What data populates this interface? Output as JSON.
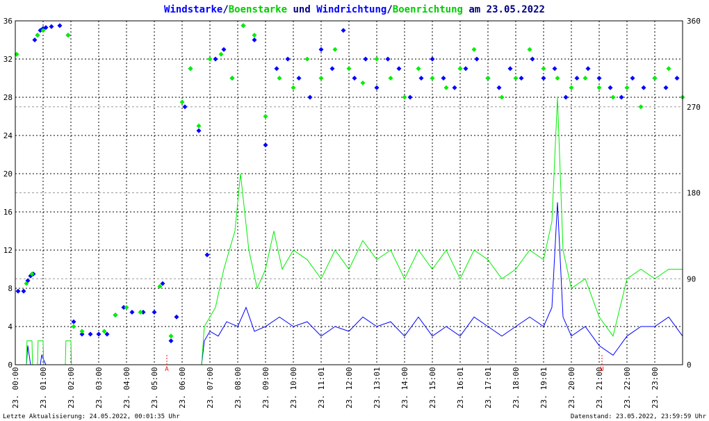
{
  "title": {
    "parts": [
      {
        "text": "Windstarke",
        "color": "#0000ff"
      },
      {
        "text": "/",
        "color": "#000080"
      },
      {
        "text": "Boenstarke",
        "color": "#00cc00"
      },
      {
        "text": " und ",
        "color": "#000080"
      },
      {
        "text": "Windrichtung",
        "color": "#0000ff"
      },
      {
        "text": "/",
        "color": "#000080"
      },
      {
        "text": "Boenrichtung",
        "color": "#00cc00"
      },
      {
        "text": " am 23.05.2022",
        "color": "#000080"
      }
    ]
  },
  "footer": {
    "left": "Letzte Aktualisierung: 24.05.2022, 00:01:35 Uhr",
    "right": "Datenstand: 23.05.2022, 23:59:59 Uhr"
  },
  "markers": [
    {
      "label": "A",
      "hour": 5.45,
      "color": "#ff0000"
    },
    {
      "label": "U",
      "hour": 21.1,
      "color": "#ff0000"
    }
  ],
  "colors": {
    "wind": "#0000ff",
    "gust": "#00ee00",
    "grid": "#000000",
    "axis": "#000000"
  },
  "chart_data": {
    "type": "line",
    "x_range_hours": [
      0,
      24
    ],
    "x_tick_labels": [
      "23. 00:00",
      "23. 01:00",
      "23. 02:00",
      "23. 03:00",
      "23. 04:00",
      "23. 05:00",
      "23. 06:00",
      "23. 07:00",
      "23. 08:00",
      "23. 09:00",
      "23. 10:00",
      "23. 11:01",
      "23. 12:00",
      "23. 13:01",
      "23. 14:00",
      "23. 15:00",
      "23. 16:01",
      "23. 17:01",
      "23. 18:00",
      "23. 19:01",
      "23. 20:00",
      "23. 21:00",
      "23. 22:00",
      "23. 23:00"
    ],
    "y_left": {
      "min": 0,
      "max": 36,
      "ticks": [
        "0",
        "4",
        "8",
        "12",
        "16",
        "20",
        "24",
        "28",
        "32",
        "36"
      ]
    },
    "y_right": {
      "min": 0,
      "max": 360,
      "ticks": [
        "0",
        "90",
        "180",
        "270",
        "360"
      ]
    },
    "series": [
      {
        "name": "Windstarke",
        "kind": "line",
        "color": "#0000ff",
        "points": [
          [
            0,
            0
          ],
          [
            0.4,
            0
          ],
          [
            0.45,
            2
          ],
          [
            0.55,
            0
          ],
          [
            0.9,
            0
          ],
          [
            0.95,
            1
          ],
          [
            1.1,
            0
          ],
          [
            6.7,
            0
          ],
          [
            6.8,
            2.5
          ],
          [
            7.0,
            3.5
          ],
          [
            7.3,
            3
          ],
          [
            7.6,
            4.5
          ],
          [
            8.0,
            4
          ],
          [
            8.3,
            6
          ],
          [
            8.6,
            3.5
          ],
          [
            9.0,
            4
          ],
          [
            9.5,
            5
          ],
          [
            10.0,
            4
          ],
          [
            10.5,
            4.5
          ],
          [
            11.0,
            3
          ],
          [
            11.5,
            4
          ],
          [
            12.0,
            3.5
          ],
          [
            12.5,
            5
          ],
          [
            13.0,
            4
          ],
          [
            13.5,
            4.5
          ],
          [
            14.0,
            3
          ],
          [
            14.5,
            5
          ],
          [
            15.0,
            3
          ],
          [
            15.5,
            4
          ],
          [
            16.0,
            3
          ],
          [
            16.5,
            5
          ],
          [
            17.0,
            4
          ],
          [
            17.5,
            3
          ],
          [
            18.0,
            4
          ],
          [
            18.5,
            5
          ],
          [
            19.0,
            4
          ],
          [
            19.3,
            6
          ],
          [
            19.5,
            17
          ],
          [
            19.7,
            5
          ],
          [
            20.0,
            3
          ],
          [
            20.5,
            4
          ],
          [
            21.0,
            2
          ],
          [
            21.5,
            1
          ],
          [
            22.0,
            3
          ],
          [
            22.5,
            4
          ],
          [
            23.0,
            4
          ],
          [
            23.5,
            5
          ],
          [
            24.0,
            3
          ]
        ]
      },
      {
        "name": "Boenstarke",
        "kind": "line",
        "color": "#00ee00",
        "points": [
          [
            0,
            0
          ],
          [
            0.4,
            0
          ],
          [
            0.42,
            2.5
          ],
          [
            0.6,
            2.5
          ],
          [
            0.62,
            0
          ],
          [
            0.8,
            0
          ],
          [
            0.82,
            2.5
          ],
          [
            1.0,
            2.5
          ],
          [
            1.02,
            0
          ],
          [
            1.8,
            0
          ],
          [
            1.82,
            2.5
          ],
          [
            2.0,
            2.5
          ],
          [
            2.02,
            0
          ],
          [
            6.7,
            0
          ],
          [
            6.8,
            4
          ],
          [
            7.2,
            6
          ],
          [
            7.5,
            10
          ],
          [
            7.9,
            14
          ],
          [
            8.1,
            20
          ],
          [
            8.4,
            12
          ],
          [
            8.7,
            8
          ],
          [
            9.0,
            10
          ],
          [
            9.3,
            14
          ],
          [
            9.6,
            10
          ],
          [
            10.0,
            12
          ],
          [
            10.5,
            11
          ],
          [
            11.0,
            9
          ],
          [
            11.5,
            12
          ],
          [
            12.0,
            10
          ],
          [
            12.5,
            13
          ],
          [
            13.0,
            11
          ],
          [
            13.5,
            12
          ],
          [
            14.0,
            9
          ],
          [
            14.5,
            12
          ],
          [
            15.0,
            10
          ],
          [
            15.5,
            12
          ],
          [
            16.0,
            9
          ],
          [
            16.5,
            12
          ],
          [
            17.0,
            11
          ],
          [
            17.5,
            9
          ],
          [
            18.0,
            10
          ],
          [
            18.5,
            12
          ],
          [
            19.0,
            11
          ],
          [
            19.3,
            15
          ],
          [
            19.5,
            28
          ],
          [
            19.7,
            12
          ],
          [
            20.0,
            8
          ],
          [
            20.5,
            9
          ],
          [
            21.0,
            5
          ],
          [
            21.5,
            3
          ],
          [
            22.0,
            9
          ],
          [
            22.5,
            10
          ],
          [
            23.0,
            9
          ],
          [
            23.5,
            10
          ],
          [
            24.0,
            10
          ]
        ]
      },
      {
        "name": "Windrichtung",
        "kind": "scatter",
        "color": "#0000ff",
        "points": [
          [
            0.1,
            77
          ],
          [
            0.3,
            77
          ],
          [
            0.45,
            88
          ],
          [
            0.55,
            93
          ],
          [
            0.65,
            95
          ],
          [
            0.7,
            340
          ],
          [
            0.8,
            345
          ],
          [
            0.9,
            350
          ],
          [
            1.0,
            352
          ],
          [
            1.1,
            353
          ],
          [
            1.3,
            354
          ],
          [
            1.6,
            355
          ],
          [
            1.9,
            345
          ],
          [
            2.1,
            45
          ],
          [
            2.4,
            32
          ],
          [
            2.7,
            32
          ],
          [
            3.0,
            32
          ],
          [
            3.3,
            32
          ],
          [
            3.6,
            52
          ],
          [
            3.9,
            60
          ],
          [
            4.2,
            55
          ],
          [
            4.6,
            55
          ],
          [
            5.0,
            55
          ],
          [
            5.3,
            85
          ],
          [
            5.6,
            25
          ],
          [
            5.8,
            50
          ],
          [
            6.1,
            270
          ],
          [
            6.3,
            310
          ],
          [
            6.6,
            245
          ],
          [
            6.9,
            115
          ],
          [
            7.2,
            320
          ],
          [
            7.5,
            330
          ],
          [
            7.8,
            300
          ],
          [
            8.2,
            355
          ],
          [
            8.6,
            340
          ],
          [
            9.0,
            230
          ],
          [
            9.4,
            310
          ],
          [
            9.8,
            320
          ],
          [
            10.2,
            300
          ],
          [
            10.6,
            280
          ],
          [
            11.0,
            330
          ],
          [
            11.4,
            310
          ],
          [
            11.8,
            350
          ],
          [
            12.2,
            300
          ],
          [
            12.6,
            320
          ],
          [
            13.0,
            290
          ],
          [
            13.4,
            320
          ],
          [
            13.8,
            310
          ],
          [
            14.2,
            280
          ],
          [
            14.6,
            300
          ],
          [
            15.0,
            320
          ],
          [
            15.4,
            300
          ],
          [
            15.8,
            290
          ],
          [
            16.2,
            310
          ],
          [
            16.6,
            320
          ],
          [
            17.0,
            300
          ],
          [
            17.4,
            290
          ],
          [
            17.8,
            310
          ],
          [
            18.2,
            300
          ],
          [
            18.6,
            320
          ],
          [
            19.0,
            300
          ],
          [
            19.4,
            310
          ],
          [
            19.8,
            280
          ],
          [
            20.2,
            300
          ],
          [
            20.6,
            310
          ],
          [
            21.0,
            300
          ],
          [
            21.4,
            290
          ],
          [
            21.8,
            280
          ],
          [
            22.2,
            300
          ],
          [
            22.6,
            290
          ],
          [
            23.0,
            300
          ],
          [
            23.4,
            290
          ],
          [
            23.8,
            300
          ]
        ]
      },
      {
        "name": "Boenrichtung",
        "kind": "scatter",
        "color": "#00ee00",
        "points": [
          [
            0.05,
            325
          ],
          [
            0.4,
            85
          ],
          [
            0.6,
            95
          ],
          [
            0.8,
            345
          ],
          [
            1.0,
            350
          ],
          [
            1.9,
            345
          ],
          [
            2.1,
            40
          ],
          [
            2.4,
            35
          ],
          [
            3.2,
            35
          ],
          [
            3.6,
            52
          ],
          [
            4.0,
            60
          ],
          [
            4.5,
            55
          ],
          [
            5.2,
            82
          ],
          [
            5.6,
            30
          ],
          [
            6.0,
            275
          ],
          [
            6.3,
            310
          ],
          [
            6.6,
            250
          ],
          [
            7.0,
            320
          ],
          [
            7.4,
            325
          ],
          [
            7.8,
            300
          ],
          [
            8.2,
            355
          ],
          [
            8.6,
            345
          ],
          [
            9.0,
            260
          ],
          [
            9.5,
            300
          ],
          [
            10.0,
            290
          ],
          [
            10.5,
            320
          ],
          [
            11.0,
            300
          ],
          [
            11.5,
            330
          ],
          [
            12.0,
            310
          ],
          [
            12.5,
            295
          ],
          [
            13.0,
            320
          ],
          [
            13.5,
            300
          ],
          [
            14.0,
            280
          ],
          [
            14.5,
            310
          ],
          [
            15.0,
            300
          ],
          [
            15.5,
            290
          ],
          [
            16.0,
            310
          ],
          [
            16.5,
            330
          ],
          [
            17.0,
            300
          ],
          [
            17.5,
            280
          ],
          [
            18.0,
            300
          ],
          [
            18.5,
            330
          ],
          [
            19.0,
            310
          ],
          [
            19.5,
            300
          ],
          [
            20.0,
            290
          ],
          [
            20.5,
            300
          ],
          [
            21.0,
            290
          ],
          [
            21.5,
            280
          ],
          [
            22.0,
            290
          ],
          [
            22.5,
            270
          ],
          [
            23.0,
            300
          ],
          [
            23.5,
            310
          ],
          [
            24.0,
            280
          ]
        ]
      }
    ]
  }
}
